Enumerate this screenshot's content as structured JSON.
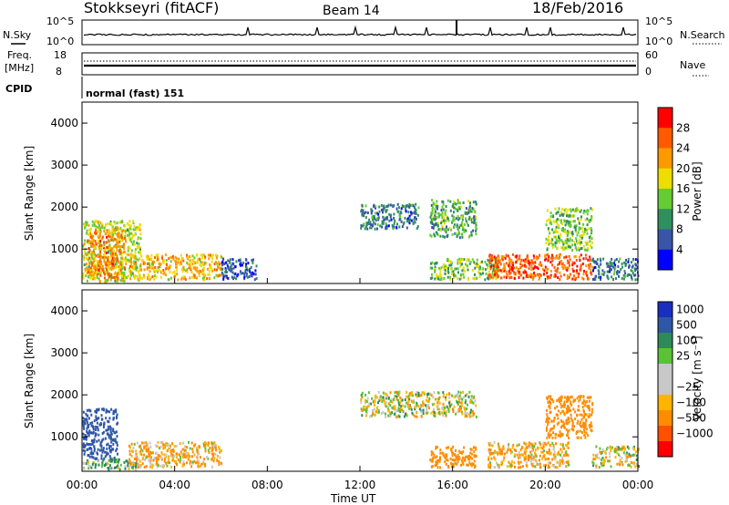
{
  "header": {
    "station": "Stokkseyri (fitACF)",
    "beam": "Beam 14",
    "date": "18/Feb/2016"
  },
  "top_panels": {
    "nsky_label": "N.Sky",
    "nsky_ticks": [
      "10^5",
      "10^0"
    ],
    "nsearch_label": "N.Search",
    "nsearch_ticks": [
      "10^5",
      "10^0"
    ],
    "freq_label": "Freq.",
    "freq_unit": "[MHz]",
    "freq_ticks": [
      "18",
      "8"
    ],
    "nave_label": "Nave",
    "nave_ticks": [
      "60",
      "0"
    ],
    "cpid_label": "CPID",
    "cpid_value": "normal (fast) 151"
  },
  "colors": {
    "power_scale": [
      "#0000ff",
      "#3a55a8",
      "#2f8f5f",
      "#66cc33",
      "#eedd00",
      "#ff9900",
      "#ff5a00",
      "#ff0000"
    ],
    "velocity_scale": [
      "#1a2fbf",
      "#2f57a8",
      "#2e8b57",
      "#5bc236",
      "#c8c8c8",
      "#c8c8c8",
      "#ffb400",
      "#ff8c00",
      "#ff5000",
      "#ff0000"
    ]
  },
  "chart_data": [
    {
      "type": "heatmap",
      "name": "power",
      "ylabel": "Slant Range [km]",
      "ylim": [
        180,
        4500
      ],
      "yticks": [
        "1000",
        "2000",
        "3000",
        "4000"
      ],
      "colorbar_label": "Power [dB]",
      "colorbar_ticks": [
        "4",
        "8",
        "12",
        "16",
        "20",
        "24",
        "28"
      ],
      "colorbar_range": [
        0,
        32
      ],
      "regions": [
        {
          "t0": 0.0,
          "t1": 2.5,
          "r0": 250,
          "r1": 1700,
          "value": 16
        },
        {
          "t0": 0.2,
          "t1": 1.8,
          "r0": 300,
          "r1": 1500,
          "value": 24
        },
        {
          "t0": 2.0,
          "t1": 6.0,
          "r0": 300,
          "r1": 900,
          "value": 20
        },
        {
          "t0": 6.0,
          "t1": 7.5,
          "r0": 300,
          "r1": 800,
          "value": 6
        },
        {
          "t0": 12.0,
          "t1": 14.5,
          "r0": 1500,
          "r1": 2100,
          "value": 8
        },
        {
          "t0": 15.0,
          "t1": 17.0,
          "r0": 1300,
          "r1": 2200,
          "value": 12
        },
        {
          "t0": 15.0,
          "t1": 18.0,
          "r0": 300,
          "r1": 800,
          "value": 14
        },
        {
          "t0": 17.5,
          "t1": 22.0,
          "r0": 300,
          "r1": 900,
          "value": 26
        },
        {
          "t0": 20.0,
          "t1": 22.0,
          "r0": 1000,
          "r1": 2000,
          "value": 14
        },
        {
          "t0": 22.0,
          "t1": 24.0,
          "r0": 300,
          "r1": 800,
          "value": 8
        }
      ]
    },
    {
      "type": "heatmap",
      "name": "velocity",
      "ylabel": "Slant Range [km]",
      "ylim": [
        180,
        4500
      ],
      "yticks": [
        "1000",
        "2000",
        "3000",
        "4000"
      ],
      "xlabel": "Time UT",
      "xticks": [
        "00:00",
        "04:00",
        "08:00",
        "12:00",
        "16:00",
        "20:00",
        "00:00"
      ],
      "xlim": [
        0,
        24
      ],
      "colorbar_label": "Velocity [m s⁻¹]",
      "colorbar_ticks": [
        "1000",
        "500",
        "100",
        "25",
        "−25",
        "−100",
        "−500",
        "−1000"
      ],
      "regions": [
        {
          "t0": 0.0,
          "t1": 1.5,
          "r0": 500,
          "r1": 1700,
          "value": 800
        },
        {
          "t0": 0.0,
          "t1": 2.5,
          "r0": 250,
          "r1": 500,
          "value": 100
        },
        {
          "t0": 2.0,
          "t1": 6.0,
          "r0": 300,
          "r1": 900,
          "value": -100
        },
        {
          "t0": 12.0,
          "t1": 17.0,
          "r0": 1500,
          "r1": 2100,
          "value": 0
        },
        {
          "t0": 15.0,
          "t1": 17.0,
          "r0": 300,
          "r1": 800,
          "value": -300
        },
        {
          "t0": 17.5,
          "t1": 21.0,
          "r0": 300,
          "r1": 900,
          "value": -100
        },
        {
          "t0": 20.0,
          "t1": 22.0,
          "r0": 1000,
          "r1": 2000,
          "value": -300
        },
        {
          "t0": 22.0,
          "t1": 24.0,
          "r0": 300,
          "r1": 800,
          "value": 0
        }
      ]
    }
  ]
}
